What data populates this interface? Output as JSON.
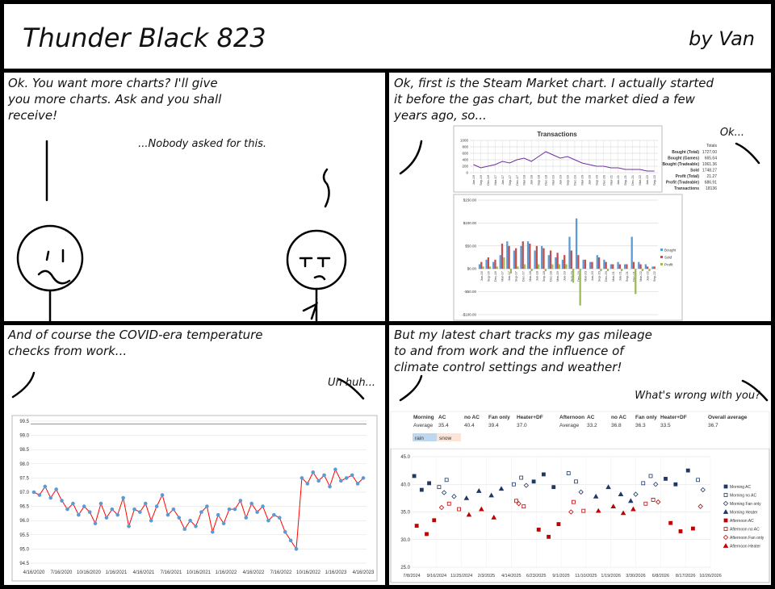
{
  "header": {
    "title": "Thunder Black 823",
    "byline": "by Van"
  },
  "panels": [
    {
      "caption": [
        "Ok. You want more charts? I'll give",
        "you more charts. Ask and you shall",
        "receive!"
      ],
      "reply": "...Nobody asked for this."
    },
    {
      "caption": [
        "Ok, first is the Steam Market chart. I actually started",
        "it before the gas chart, but the market died a few",
        "years ago, so..."
      ],
      "reply": "Ok..."
    },
    {
      "caption": [
        "And of course the COVID-era temperature",
        "checks from work..."
      ],
      "reply": "Uh huh..."
    },
    {
      "caption": [
        "But my latest chart tracks my gas mileage",
        "to and from work and the influence of",
        "climate control settings and weather!"
      ],
      "reply": "What's wrong with you?"
    }
  ],
  "market": {
    "line_chart": {
      "type": "line",
      "title": "Transactions",
      "color": "#7030a0",
      "categories": [
        "Jun-16",
        "Sep-16",
        "Dec-16",
        "Mar-17",
        "Jun-17",
        "Sep-17",
        "Dec-17",
        "Mar-18",
        "Jun-18",
        "Sep-18",
        "Dec-18",
        "Mar-19",
        "Jun-19",
        "Sep-19",
        "Dec-19",
        "Mar-20",
        "Jun-20",
        "Sep-20",
        "Dec-20",
        "Mar-21",
        "Jun-21",
        "Sep-21",
        "Dec-21",
        "Mar-22",
        "Jun-22",
        "Sep-22"
      ],
      "values": [
        250,
        150,
        200,
        250,
        350,
        300,
        400,
        450,
        350,
        500,
        650,
        550,
        450,
        500,
        400,
        300,
        250,
        200,
        200,
        150,
        150,
        100,
        100,
        100,
        50,
        50
      ],
      "ylim": [
        0,
        1000
      ],
      "yticks": [
        0,
        200,
        400,
        600,
        800,
        1000
      ],
      "grid": true
    },
    "totals": {
      "header": "Totals",
      "rows": [
        [
          "Bought (Total)",
          "1727.00"
        ],
        [
          "Bought (Games)",
          "665.64"
        ],
        [
          "Bought (Tradeable)",
          "1061.36"
        ],
        [
          "Sold",
          "1748.27"
        ],
        [
          "Profit (Total)",
          "21.27"
        ],
        [
          "Profit (Tradeable)",
          "686.91"
        ],
        [
          "Transactions",
          "18136"
        ]
      ]
    },
    "bar_chart": {
      "type": "bar",
      "categories": [
        "Jun-16",
        "Sep-16",
        "Dec-16",
        "Mar-17",
        "Jun-17",
        "Sep-17",
        "Dec-17",
        "Mar-18",
        "Jun-18",
        "Sep-18",
        "Dec-18",
        "Mar-19",
        "Jun-19",
        "Sep-19",
        "Dec-19",
        "Mar-20",
        "Jun-20",
        "Sep-20",
        "Dec-20",
        "Mar-21",
        "Jun-21",
        "Sep-21",
        "Dec-21",
        "Mar-22",
        "Jun-22",
        "Sep-22"
      ],
      "series": [
        {
          "name": "Bought",
          "color": "#5b9bd5",
          "values": [
            10,
            20,
            15,
            30,
            60,
            40,
            50,
            60,
            40,
            50,
            30,
            25,
            20,
            70,
            110,
            20,
            15,
            30,
            20,
            10,
            15,
            10,
            70,
            15,
            10,
            5
          ]
        },
        {
          "name": "Sold",
          "color": "#c0504d",
          "values": [
            15,
            25,
            20,
            55,
            50,
            45,
            60,
            55,
            50,
            45,
            40,
            35,
            30,
            40,
            30,
            20,
            15,
            25,
            15,
            10,
            10,
            10,
            15,
            10,
            5,
            5
          ]
        },
        {
          "name": "Profit",
          "color": "#9bbb59",
          "values": [
            5,
            5,
            5,
            25,
            -10,
            5,
            10,
            -5,
            10,
            -5,
            10,
            10,
            10,
            -30,
            -80,
            0,
            0,
            -5,
            -5,
            0,
            -5,
            0,
            -55,
            -5,
            -5,
            0
          ]
        }
      ],
      "ylim": [
        -100,
        150
      ],
      "yticks": [
        {
          "value": -100,
          "label": "-$100.00"
        },
        {
          "value": -50,
          "label": "-$50.00"
        },
        {
          "value": 0,
          "label": "$0.00"
        },
        {
          "value": 50,
          "label": "$50.00"
        },
        {
          "value": 100,
          "label": "$100.00"
        },
        {
          "value": 150,
          "label": "$150.00"
        }
      ],
      "grid": true
    }
  },
  "temperature": {
    "type": "scatter",
    "point_color": "#5b9bd5",
    "line_color": "#ff0000",
    "threshold": 99.4,
    "threshold_color": "#ed7d31",
    "xticks": [
      "4/16/2020",
      "7/16/2020",
      "10/16/2020",
      "1/16/2021",
      "4/16/2021",
      "7/16/2021",
      "10/16/2021",
      "1/16/2022",
      "4/16/2022",
      "7/16/2022",
      "10/16/2022",
      "1/16/2023",
      "4/16/2023"
    ],
    "values": [
      97.0,
      96.9,
      97.2,
      96.8,
      97.1,
      96.7,
      96.4,
      96.6,
      96.2,
      96.5,
      96.3,
      95.9,
      96.6,
      96.1,
      96.4,
      96.2,
      96.8,
      95.8,
      96.4,
      96.3,
      96.6,
      96.0,
      96.5,
      96.9,
      96.2,
      96.4,
      96.1,
      95.7,
      96.0,
      95.8,
      96.3,
      96.5,
      95.6,
      96.2,
      95.9,
      96.4,
      96.4,
      96.7,
      96.1,
      96.6,
      96.3,
      96.5,
      96.0,
      96.2,
      96.1,
      95.6,
      95.3,
      95.0,
      97.5,
      97.3,
      97.7,
      97.4,
      97.6,
      97.2,
      97.8,
      97.4,
      97.5,
      97.6,
      97.3,
      97.5
    ],
    "ylim": [
      94.5,
      99.5
    ],
    "yticks": [
      94.5,
      {
        "value": 95,
        "label": "95.0"
      },
      95.5,
      {
        "value": 96,
        "label": "96.0"
      },
      96.5,
      {
        "value": 97,
        "label": "97.0"
      },
      97.5,
      {
        "value": 98,
        "label": "98.0"
      },
      98.5,
      {
        "value": 99,
        "label": "99.0"
      },
      99.5
    ],
    "grid": true
  },
  "gas": {
    "table": [
      [
        "Morning",
        "AC",
        "no AC",
        "Fan only",
        "Heater+DF",
        "Afternoon",
        "AC",
        "no AC",
        "Fan only",
        "Heater+DF",
        "Overall average"
      ],
      [
        "Average",
        "35.4",
        "40.4",
        "39.4",
        "37.0",
        "Average",
        "33.2",
        "36.8",
        "36.3",
        "33.5",
        "36.7"
      ]
    ],
    "weather": [
      {
        "label": "rain",
        "color": "#bdd7ee"
      },
      {
        "label": "snow",
        "color": "#fce4d6"
      }
    ],
    "chart": {
      "type": "scatter",
      "xlim": [
        "7/8/2024",
        "10/26/2026"
      ],
      "xticks": [
        "7/8/2024",
        "9/16/2024",
        "11/25/2024",
        "2/3/2025",
        "4/14/2025",
        "6/23/2025",
        "9/1/2025",
        "11/10/2025",
        "1/19/2026",
        "3/30/2026",
        "6/8/2026",
        "8/17/2026",
        "10/26/2026"
      ],
      "ylim": [
        25,
        45
      ],
      "yticks": [
        {
          "value": 25,
          "label": "25.0"
        },
        {
          "value": 30,
          "label": "30.0"
        },
        {
          "value": 35,
          "label": "35.0"
        },
        {
          "value": 40,
          "label": "40.0"
        },
        {
          "value": 45,
          "label": "45.0"
        }
      ],
      "grid": true,
      "series": [
        {
          "name": "Morning AC",
          "color": "#1f3864",
          "marker": "square",
          "x": [
            "7/15/2024",
            "8/5/2024",
            "8/26/2024",
            "6/16/2025",
            "7/14/2025",
            "8/11/2025",
            "6/22/2026",
            "7/20/2026",
            "8/24/2026"
          ],
          "values": [
            41.5,
            39.0,
            40.2,
            40.5,
            41.8,
            39.5,
            41.0,
            40.0,
            42.5
          ]
        },
        {
          "name": "Morning no AC",
          "color": "#1f3864",
          "marker": "open-square",
          "x": [
            "9/23/2024",
            "10/14/2024",
            "4/21/2025",
            "5/12/2025",
            "9/22/2025",
            "10/13/2025",
            "4/20/2026",
            "5/11/2026",
            "9/21/2026"
          ],
          "values": [
            39.5,
            40.8,
            40.0,
            41.2,
            42.0,
            40.5,
            40.2,
            41.5,
            40.8
          ]
        },
        {
          "name": "Morning Fan only",
          "color": "#1f3864",
          "marker": "open-diamond",
          "x": [
            "10/7/2024",
            "11/4/2024",
            "5/26/2025",
            "10/27/2025",
            "3/30/2026",
            "5/25/2026",
            "10/5/2026"
          ],
          "values": [
            38.5,
            37.8,
            39.8,
            38.6,
            38.2,
            40.0,
            39.0
          ]
        },
        {
          "name": "Morning Heater",
          "color": "#1f3864",
          "marker": "triangle",
          "x": [
            "12/9/2024",
            "1/13/2025",
            "2/17/2025",
            "3/17/2025",
            "12/8/2025",
            "1/12/2026",
            "2/16/2026",
            "3/16/2026"
          ],
          "values": [
            37.5,
            38.8,
            38.0,
            39.2,
            37.8,
            39.5,
            38.2,
            37.0
          ]
        },
        {
          "name": "Afternoon AC",
          "color": "#c00000",
          "marker": "square",
          "x": [
            "7/22/2024",
            "8/19/2024",
            "9/9/2024",
            "6/30/2025",
            "7/28/2025",
            "8/25/2025",
            "7/6/2026",
            "8/3/2026",
            "9/7/2026"
          ],
          "values": [
            32.5,
            31.0,
            33.5,
            31.8,
            30.5,
            32.8,
            33.0,
            31.5,
            32.0
          ]
        },
        {
          "name": "Afternoon no AC",
          "color": "#c00000",
          "marker": "open-square",
          "x": [
            "10/21/2024",
            "11/18/2024",
            "4/28/2025",
            "5/19/2025",
            "10/6/2025",
            "11/3/2025",
            "4/27/2026",
            "5/18/2026"
          ],
          "values": [
            36.5,
            35.5,
            37.0,
            36.0,
            36.8,
            35.2,
            36.5,
            37.2
          ]
        },
        {
          "name": "Afternoon Fan only",
          "color": "#c00000",
          "marker": "open-diamond",
          "x": [
            "9/30/2024",
            "5/5/2025",
            "9/29/2025",
            "6/1/2026",
            "9/28/2026"
          ],
          "values": [
            35.8,
            36.5,
            35.0,
            36.8,
            36.0
          ]
        },
        {
          "name": "Afternoon Heater",
          "color": "#c00000",
          "marker": "triangle",
          "x": [
            "12/16/2024",
            "1/20/2025",
            "2/24/2025",
            "12/15/2025",
            "1/26/2026",
            "2/23/2026",
            "3/23/2026"
          ],
          "values": [
            34.5,
            35.5,
            34.0,
            35.2,
            36.0,
            34.8,
            35.5
          ]
        }
      ]
    }
  }
}
